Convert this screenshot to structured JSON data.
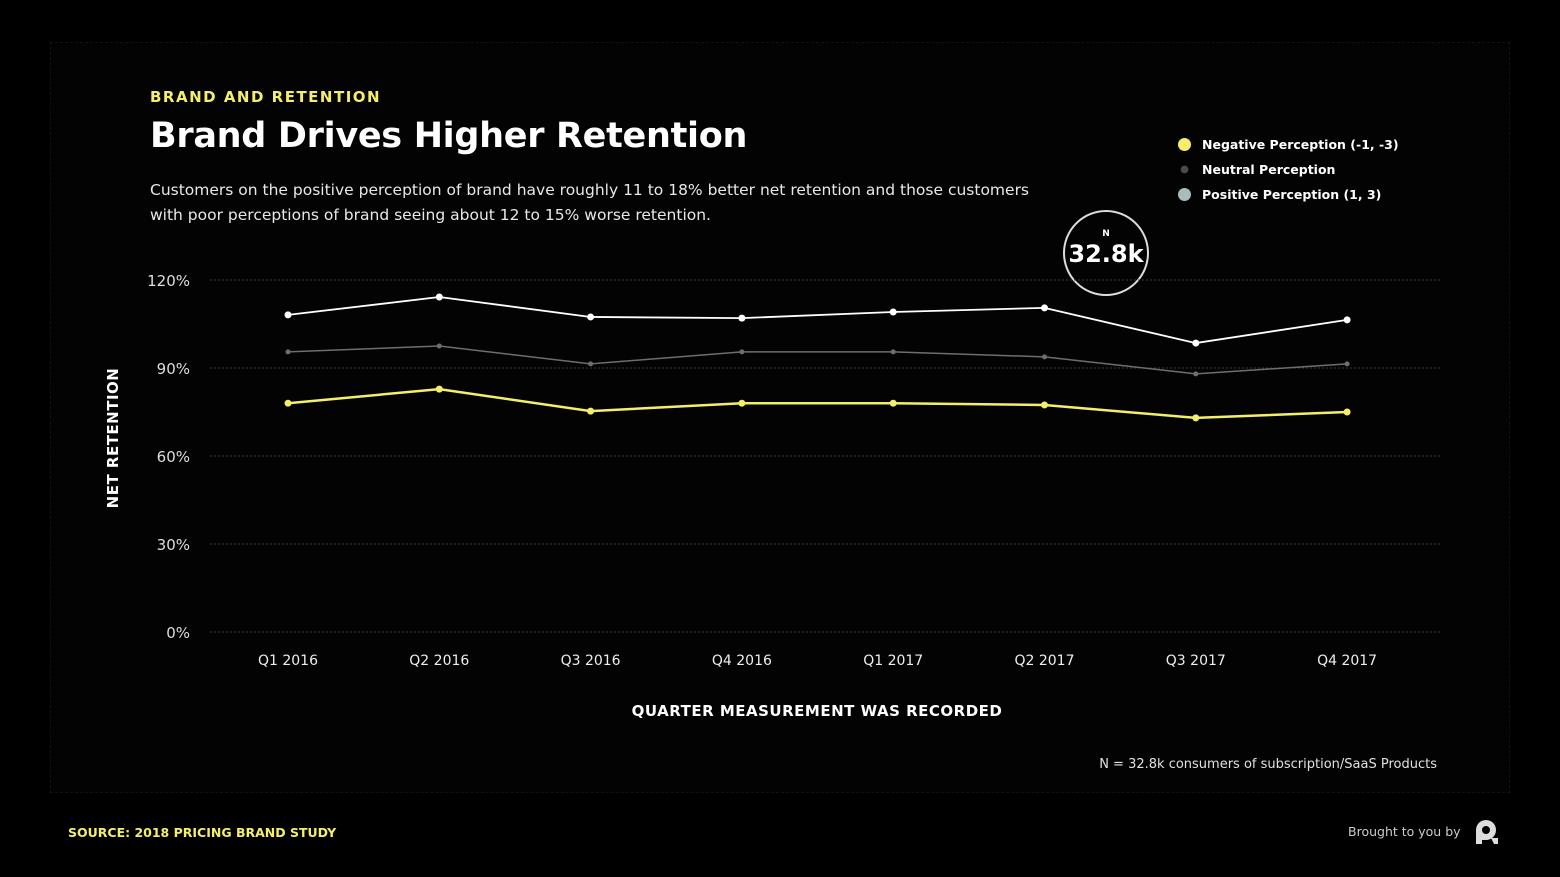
{
  "header": {
    "eyebrow": "BRAND AND RETENTION",
    "title": "Brand Drives Higher Retention",
    "subtitle": "Customers on the positive perception of brand have roughly 11 to 18% better net retention and those customers with poor perceptions of brand seeing about 12 to 15% worse retention."
  },
  "badge": {
    "label": "N",
    "value": "32.8k"
  },
  "footer": {
    "note": "N = 32.8k consumers of subscription/SaaS Products",
    "source": "SOURCE: 2018 PRICING BRAND STUDY",
    "brought": "Brought to you by"
  },
  "chart_data": {
    "type": "line",
    "title": "Brand Drives Higher Retention",
    "xlabel": "QUARTER MEASUREMENT WAS RECORDED",
    "ylabel": "NET RETENTION",
    "categories": [
      "Q1 2016",
      "Q2 2016",
      "Q3 2016",
      "Q4 2016",
      "Q1 2017",
      "Q2 2017",
      "Q3 2017",
      "Q4 2017"
    ],
    "yticks": [
      0,
      30,
      60,
      90,
      120
    ],
    "ytick_labels": [
      "0%",
      "30%",
      "60%",
      "90%",
      "120%"
    ],
    "ylim": [
      0,
      120
    ],
    "grid": true,
    "legend_position": "top-right",
    "series": [
      {
        "name": "Negative Perception (-1, -3)",
        "color": "#f4ef6a",
        "values": [
          78,
          82.8,
          75.3,
          78,
          78,
          77.4,
          73,
          75
        ]
      },
      {
        "name": "Neutral Perception",
        "color": "#6e6e6e",
        "values": [
          95.5,
          97.5,
          91.4,
          95.5,
          95.5,
          93.8,
          88,
          91.4
        ]
      },
      {
        "name": "Positive Perception (1, 3)",
        "color": "#a9bcbc",
        "line_color": "#ffffff",
        "values": [
          108.1,
          114.2,
          107.4,
          107,
          109.1,
          110.5,
          98.5,
          106.4
        ]
      }
    ]
  }
}
